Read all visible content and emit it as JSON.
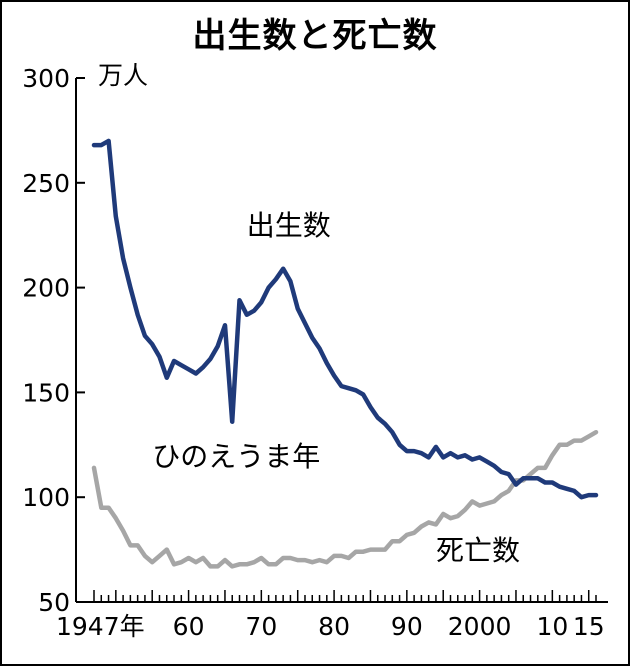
{
  "chart_data": {
    "type": "line",
    "title": "出生数と死亡数",
    "unit": "万人",
    "ylim": [
      50,
      300
    ],
    "yticks": [
      50,
      100,
      150,
      200,
      250,
      300
    ],
    "xlim": [
      1947,
      2016
    ],
    "xticks": [
      {
        "value": 1947,
        "label": "1947年"
      },
      {
        "value": 1960,
        "label": "60"
      },
      {
        "value": 1970,
        "label": "70"
      },
      {
        "value": 1980,
        "label": "80"
      },
      {
        "value": 1990,
        "label": "90"
      },
      {
        "value": 2000,
        "label": "2000"
      },
      {
        "value": 2010,
        "label": "10"
      },
      {
        "value": 2015,
        "label": "15"
      }
    ],
    "grid": false,
    "series": [
      {
        "name": "出生数",
        "color": "#1f3a7a",
        "x": [
          1947,
          1948,
          1949,
          1950,
          1951,
          1952,
          1953,
          1954,
          1955,
          1956,
          1957,
          1958,
          1959,
          1960,
          1961,
          1962,
          1963,
          1964,
          1965,
          1966,
          1967,
          1968,
          1969,
          1970,
          1971,
          1972,
          1973,
          1974,
          1975,
          1976,
          1977,
          1978,
          1979,
          1980,
          1981,
          1982,
          1983,
          1984,
          1985,
          1986,
          1987,
          1988,
          1989,
          1990,
          1991,
          1992,
          1993,
          1994,
          1995,
          1996,
          1997,
          1998,
          1999,
          2000,
          2001,
          2002,
          2003,
          2004,
          2005,
          2006,
          2007,
          2008,
          2009,
          2010,
          2011,
          2012,
          2013,
          2014,
          2015,
          2016
        ],
        "values": [
          268,
          268,
          270,
          234,
          214,
          200,
          187,
          177,
          173,
          167,
          157,
          165,
          163,
          161,
          159,
          162,
          166,
          172,
          182,
          136,
          194,
          187,
          189,
          193,
          200,
          204,
          209,
          203,
          190,
          183,
          176,
          171,
          164,
          158,
          153,
          152,
          151,
          149,
          143,
          138,
          135,
          131,
          125,
          122,
          122,
          121,
          119,
          124,
          119,
          121,
          119,
          120,
          118,
          119,
          117,
          115,
          112,
          111,
          106,
          109,
          109,
          109,
          107,
          107,
          105,
          104,
          103,
          100,
          101,
          101
        ]
      },
      {
        "name": "死亡数",
        "color": "#a6a6a6",
        "x": [
          1947,
          1948,
          1949,
          1950,
          1951,
          1952,
          1953,
          1954,
          1955,
          1956,
          1957,
          1958,
          1959,
          1960,
          1961,
          1962,
          1963,
          1964,
          1965,
          1966,
          1967,
          1968,
          1969,
          1970,
          1971,
          1972,
          1973,
          1974,
          1975,
          1976,
          1977,
          1978,
          1979,
          1980,
          1981,
          1982,
          1983,
          1984,
          1985,
          1986,
          1987,
          1988,
          1989,
          1990,
          1991,
          1992,
          1993,
          1994,
          1995,
          1996,
          1997,
          1998,
          1999,
          2000,
          2001,
          2002,
          2003,
          2004,
          2005,
          2006,
          2007,
          2008,
          2009,
          2010,
          2011,
          2012,
          2013,
          2014,
          2015,
          2016
        ],
        "values": [
          114,
          95,
          95,
          90,
          84,
          77,
          77,
          72,
          69,
          72,
          75,
          68,
          69,
          71,
          69,
          71,
          67,
          67,
          70,
          67,
          68,
          68,
          69,
          71,
          68,
          68,
          71,
          71,
          70,
          70,
          69,
          70,
          69,
          72,
          72,
          71,
          74,
          74,
          75,
          75,
          75,
          79,
          79,
          82,
          83,
          86,
          88,
          87,
          92,
          90,
          91,
          94,
          98,
          96,
          97,
          98,
          101,
          103,
          108,
          108,
          111,
          114,
          114,
          120,
          125,
          125,
          127,
          127,
          129,
          131
        ]
      }
    ],
    "annotations": [
      {
        "text": "出生数",
        "series": "出生数"
      },
      {
        "text": "ひのえうま年",
        "x": 1966
      },
      {
        "text": "死亡数",
        "series": "死亡数"
      }
    ]
  }
}
